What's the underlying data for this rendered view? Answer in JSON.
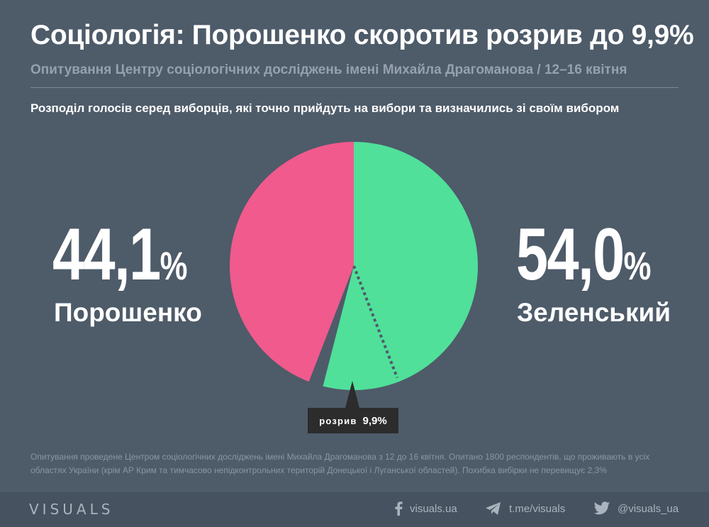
{
  "header": {
    "title": "Соціологія: Порошенко скоротив розрив до 9,9%",
    "subtitle": "Опитування Центру соціологічних досліджень імені Михайла Драгоманова  / 12–16 квітня",
    "chart_subtitle": "Розподіл голосів серед виборців, які точно прийдуть на вибори та визначились зі своїм вибором"
  },
  "colors": {
    "background": "#4e5b69",
    "poroshenko": "#f05a8d",
    "zelensky": "#50e09a",
    "label_bg": "#2c2c2c"
  },
  "chart_data": {
    "type": "pie",
    "slices": [
      {
        "name": "Порошенко",
        "value": 44.1,
        "color": "#f05a8d"
      },
      {
        "name": "Зеленський",
        "value": 54.0,
        "color": "#50e09a"
      }
    ],
    "gap": {
      "label": "розрив",
      "value": "9,9%"
    }
  },
  "left": {
    "number": "44,1",
    "unit": "%",
    "name": "Порошенко"
  },
  "right": {
    "number": "54,0",
    "unit": "%",
    "name": "Зеленський"
  },
  "gap_label": {
    "word": "розрив",
    "value": "9,9%"
  },
  "note": "Опитування проведене Центром соціологічних досліджень імені Михайла Драгоманова з 12 до 16 квітня. Опитано 1800 респондентів, що проживають в усіх областях України (крім АР Крим та тимчасово непідконтрольних територій Донецької і Луганської областей). Похибка вибірки не перевищує 2,3%",
  "footer": {
    "brand": "VISUALS",
    "facebook": "visuals.ua",
    "telegram": "t.me/visuals",
    "twitter": "@visuals_ua",
    "icons": [
      "facebook-icon",
      "telegram-icon",
      "twitter-icon"
    ]
  }
}
